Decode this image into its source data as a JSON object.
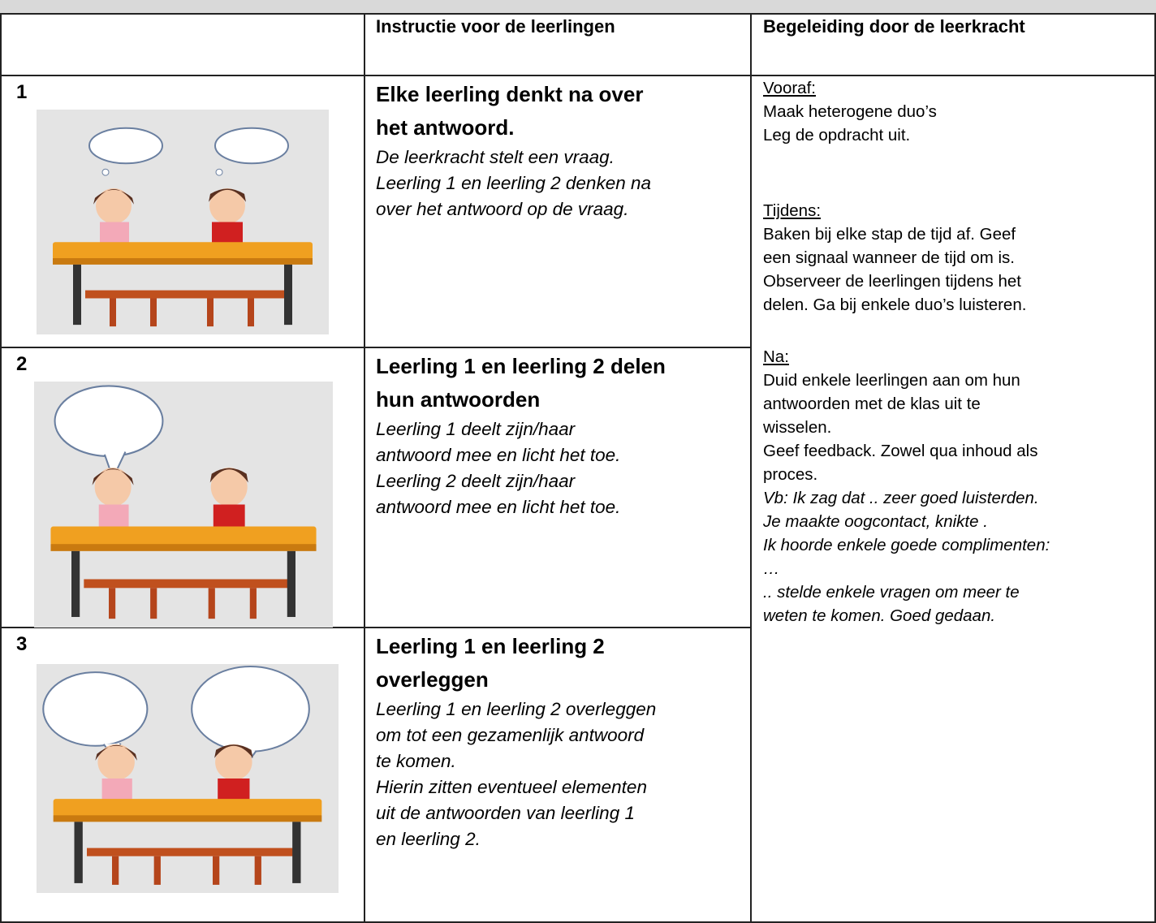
{
  "header": {
    "instruction": "Instructie voor de leerlingen",
    "guidance": "Begeleiding door de leerkracht"
  },
  "rows": [
    {
      "number": "1",
      "title_lines": [
        "Elke leerling denkt na over",
        "het antwoord."
      ],
      "lines": [
        "De leerkracht stelt een vraag.",
        "Leerling 1 en leerling 2 denken na",
        "over het antwoord op de vraag."
      ]
    },
    {
      "number": "2",
      "title_lines": [
        "Leerling 1 en leerling 2 delen",
        "hun antwoorden"
      ],
      "lines": [
        "Leerling 1 deelt zijn/haar",
        "antwoord mee en licht het toe.",
        "Leerling 2  deelt zijn/haar",
        "antwoord mee en licht het toe."
      ]
    },
    {
      "number": "3",
      "title_lines": [
        "Leerling 1 en leerling 2",
        "overleggen"
      ],
      "lines": [
        "Leerling 1 en leerling 2 overleggen",
        "om tot een gezamenlijk antwoord",
        "te komen.",
        "Hierin zitten eventueel elementen",
        "uit de antwoorden van leerling 1",
        "en leerling 2."
      ]
    }
  ],
  "guidance": {
    "sections": [
      {
        "heading": "Vooraf:",
        "lines": [
          "Maak heterogene duo’s",
          "Leg de opdracht uit."
        ]
      },
      {
        "heading": "Tijdens:",
        "lines": [
          "Baken  bij elke stap de tijd af.  Geef",
          "een signaal wanneer de tijd om is.",
          "Observeer de leerlingen tijdens het",
          "delen. Ga bij enkele duo’s luisteren."
        ]
      },
      {
        "heading": "Na:",
        "lines": [
          "Duid enkele leerlingen aan om hun",
          "antwoorden met de klas uit te",
          "wisselen.",
          "Geef feedback.  Zowel qua inhoud als",
          "proces."
        ],
        "example_lines": [
          "Vb: Ik zag dat .. zeer goed luisterden.",
          "Je maakte oogcontact, knikte .",
          "Ik hoorde enkele goede complimenten:",
          "…",
          ".. stelde enkele vragen om meer te",
          "weten te komen. Goed gedaan."
        ]
      }
    ]
  }
}
